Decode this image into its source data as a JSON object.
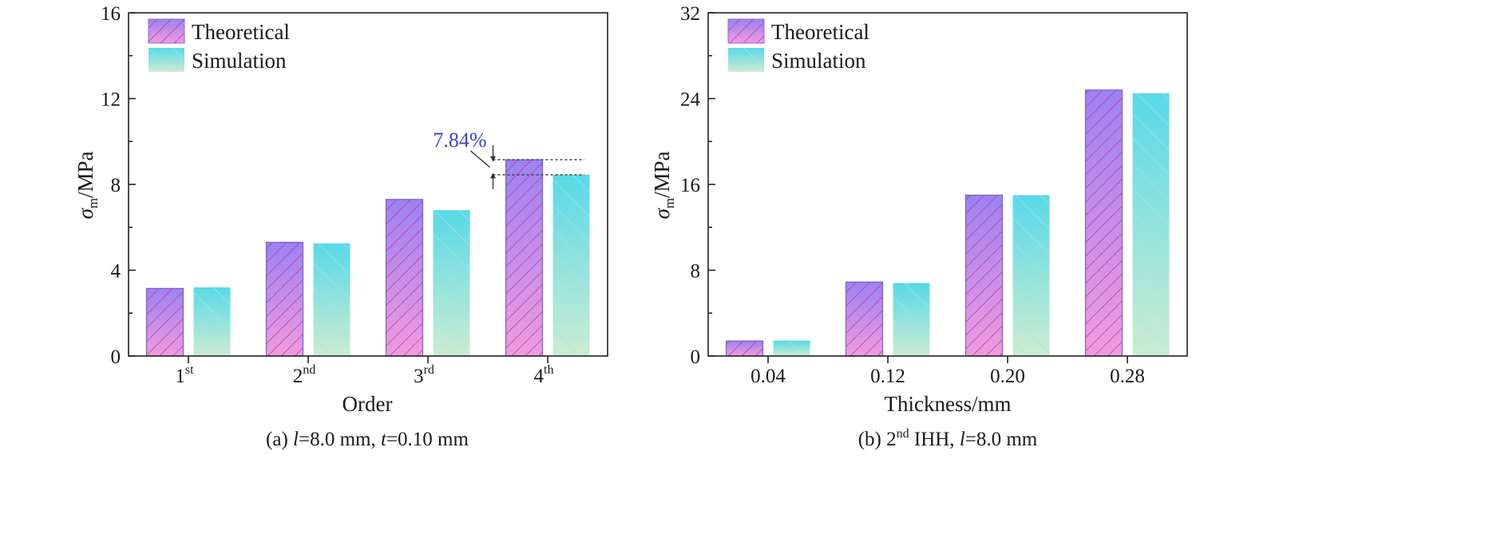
{
  "chart_data": [
    {
      "type": "bar",
      "categories": [
        "1",
        "2",
        "3",
        "4"
      ],
      "category_suffixes": [
        "st",
        "nd",
        "rd",
        "th"
      ],
      "series": [
        {
          "name": "Theoretical",
          "values": [
            3.15,
            5.3,
            7.3,
            9.15
          ]
        },
        {
          "name": "Simulation",
          "values": [
            3.2,
            5.25,
            6.8,
            8.45
          ]
        }
      ],
      "xlabel": "Order",
      "ylabel": {
        "symbol": "σ",
        "subscript": "m",
        "unit": "/MPa"
      },
      "ylim": [
        0,
        16
      ],
      "yticks": [
        "0",
        "4",
        "8",
        "12",
        "16"
      ],
      "legend_position": "top-left",
      "grid": false,
      "annotation": {
        "text": "7.84%",
        "category_index": 3
      },
      "caption": {
        "prefix": "(a) ",
        "var1": "l",
        "mid": "=8.0 mm, ",
        "var2": "t",
        "suffix": "=0.10 mm"
      }
    },
    {
      "type": "bar",
      "categories": [
        "0.04",
        "0.12",
        "0.20",
        "0.28"
      ],
      "series": [
        {
          "name": "Theoretical",
          "values": [
            1.4,
            6.9,
            15.0,
            24.8
          ]
        },
        {
          "name": "Simulation",
          "values": [
            1.45,
            6.8,
            15.0,
            24.5
          ]
        }
      ],
      "xlabel": "Thickness/mm",
      "ylabel": {
        "symbol": "σ",
        "subscript": "m",
        "unit": "/MPa"
      },
      "ylim": [
        0,
        32
      ],
      "yticks": [
        "0",
        "8",
        "16",
        "24",
        "32"
      ],
      "legend_position": "top-left",
      "grid": false,
      "caption": {
        "prefix": "(b) 2",
        "sup": "nd",
        "mid": " IHH, ",
        "var1": "l",
        "suffix": "=8.0 mm"
      }
    }
  ],
  "colors": {
    "theoretical_top": "#9b82f2",
    "theoretical_bottom": "#f19bde",
    "theoretical_hatch": "#b43ca6",
    "simulation_top": "#58d9e8",
    "simulation_bottom": "#ccecd2",
    "simulation_hatch": "#aee6d4",
    "annotation": "#3b46c9",
    "axis": "#222222"
  }
}
